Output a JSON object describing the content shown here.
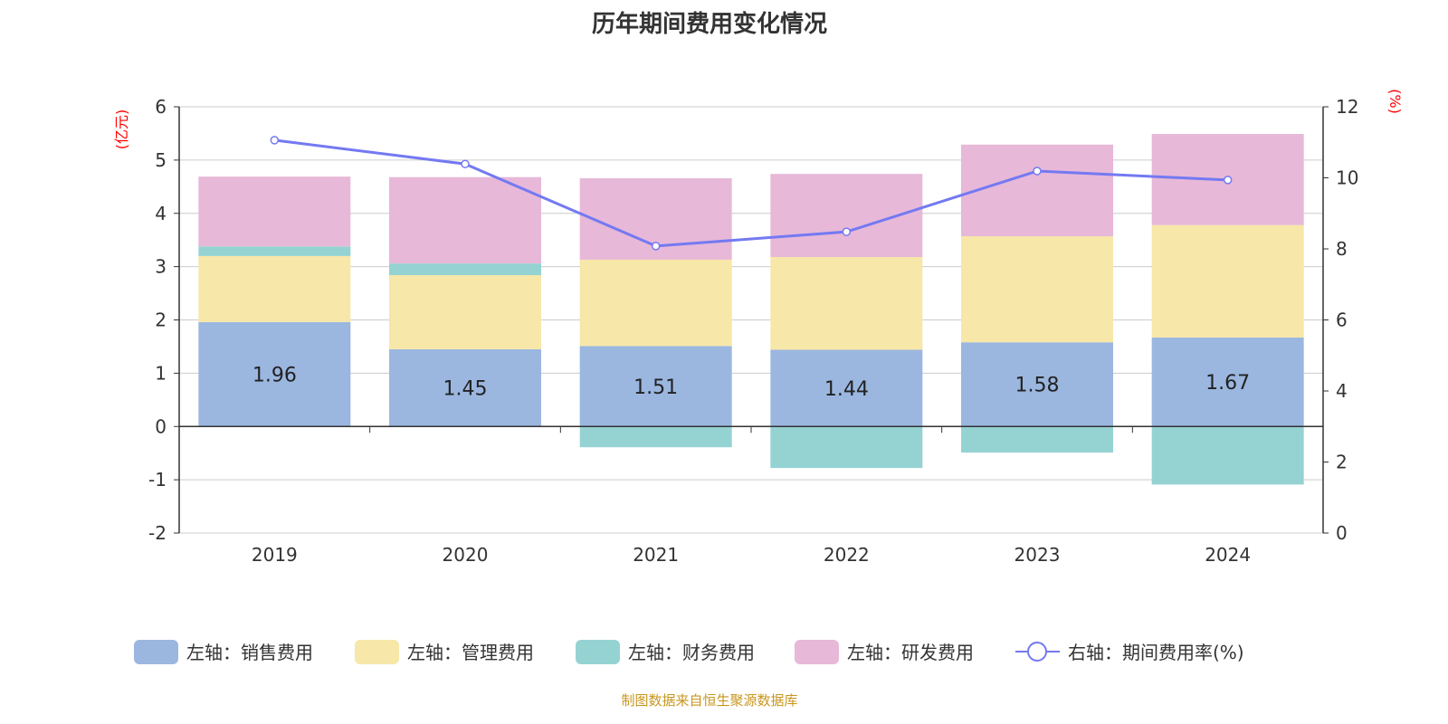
{
  "title": "历年期间费用变化情况",
  "source": "制图数据来自恒生聚源数据库",
  "chart_data": {
    "type": "bar",
    "stacked": true,
    "categories": [
      "2019",
      "2020",
      "2021",
      "2022",
      "2023",
      "2024"
    ],
    "left_axis": {
      "label": "(亿元)",
      "range": [
        -2,
        6
      ],
      "ticks": [
        "-2",
        "-1",
        "0",
        "1",
        "2",
        "3",
        "4",
        "5",
        "6"
      ]
    },
    "right_axis": {
      "label": "(%)",
      "range": [
        0,
        12
      ],
      "ticks": [
        "0",
        "2",
        "4",
        "6",
        "8",
        "10",
        "12"
      ]
    },
    "grid": true,
    "legend_position": "bottom",
    "series": [
      {
        "name": "左轴：销售费用",
        "axis": "left",
        "type": "bar",
        "color": "#9bb7e0",
        "values": [
          1.96,
          1.45,
          1.51,
          1.44,
          1.58,
          1.67
        ],
        "show_labels": true
      },
      {
        "name": "左轴：管理费用",
        "axis": "left",
        "type": "bar",
        "color": "#f7e7a8",
        "values": [
          1.24,
          1.39,
          1.62,
          1.74,
          1.99,
          2.11
        ]
      },
      {
        "name": "左轴：财务费用",
        "axis": "left",
        "type": "bar",
        "color": "#95d3d3",
        "values": [
          0.18,
          0.22,
          -0.39,
          -0.78,
          -0.49,
          -1.09
        ]
      },
      {
        "name": "左轴：研发费用",
        "axis": "left",
        "type": "bar",
        "color": "#e7b8d8",
        "values": [
          1.31,
          1.62,
          1.53,
          1.56,
          1.72,
          1.71
        ]
      },
      {
        "name": "右轴：期间费用率(%)",
        "axis": "right",
        "type": "line",
        "color": "#7479f2",
        "values": [
          11.06,
          10.39,
          8.08,
          8.48,
          10.19,
          9.94
        ]
      }
    ]
  }
}
